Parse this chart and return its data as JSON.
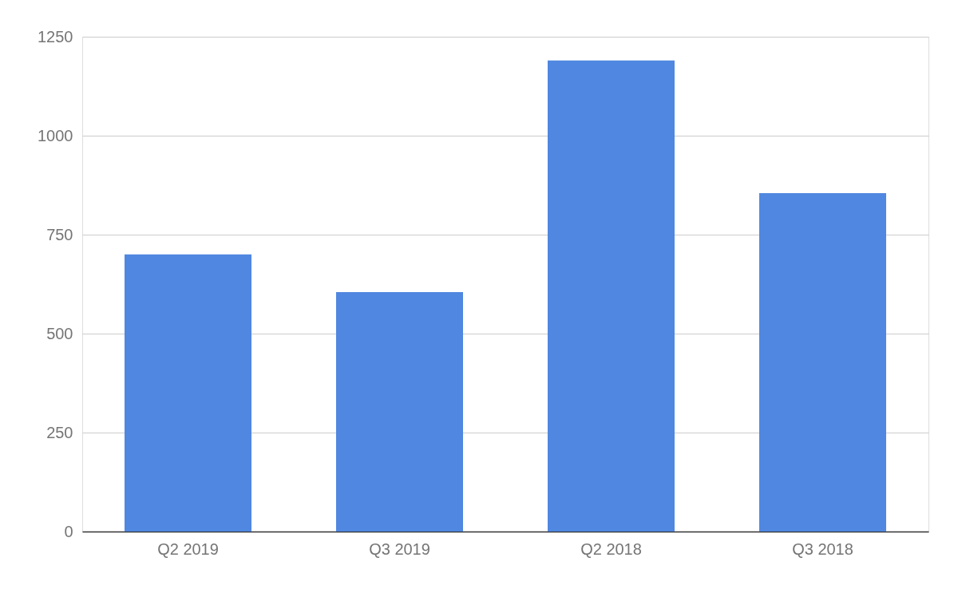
{
  "chart_data": {
    "type": "bar",
    "categories": [
      "Q2 2019",
      "Q3 2019",
      "Q2 2018",
      "Q3 2018"
    ],
    "values": [
      700,
      605,
      1190,
      855
    ],
    "color": "#5087e0",
    "ylim": [
      0,
      1250
    ],
    "yticks": [
      0,
      250,
      500,
      750,
      1000,
      1250
    ],
    "grid": "y"
  }
}
